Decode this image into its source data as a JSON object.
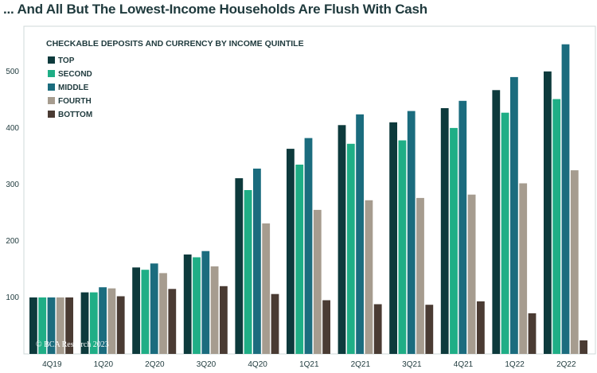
{
  "headline": "... And All But The Lowest-Income Households Are Flush With Cash",
  "watermark": "© BCA Research 2023",
  "colors": {
    "background": "#ffffff",
    "text": "#1f3a3d",
    "panel_border": "#cfd8d8"
  },
  "chart_data": {
    "type": "bar",
    "title": "CHECKABLE DEPOSITS AND CURRENCY BY INCOME QUINTILE",
    "xlabel": "",
    "ylabel": "",
    "ylim": [
      0,
      580
    ],
    "yticks": [
      100,
      200,
      300,
      400,
      500
    ],
    "grid": false,
    "legend_position": "top-left",
    "categories": [
      "4Q19",
      "1Q20",
      "2Q20",
      "3Q20",
      "4Q20",
      "1Q21",
      "2Q21",
      "3Q21",
      "4Q21",
      "1Q22",
      "2Q22"
    ],
    "series": [
      {
        "name": "TOP",
        "color": "#0d3a3c",
        "values": [
          100,
          109,
          153,
          176,
          311,
          363,
          405,
          410,
          435,
          467,
          500
        ]
      },
      {
        "name": "SECOND",
        "color": "#1fae86",
        "values": [
          100,
          109,
          149,
          171,
          290,
          335,
          372,
          378,
          400,
          427,
          451
        ]
      },
      {
        "name": "MIDDLE",
        "color": "#1b6c7e",
        "values": [
          100,
          118,
          160,
          182,
          328,
          382,
          424,
          430,
          448,
          490,
          548
        ]
      },
      {
        "name": "FOURTH",
        "color": "#a69c8f",
        "values": [
          100,
          116,
          143,
          155,
          231,
          255,
          272,
          276,
          282,
          302,
          325
        ]
      },
      {
        "name": "BOTTOM",
        "color": "#4a3b33",
        "values": [
          100,
          102,
          115,
          120,
          106,
          95,
          88,
          87,
          93,
          72,
          24
        ]
      }
    ]
  }
}
